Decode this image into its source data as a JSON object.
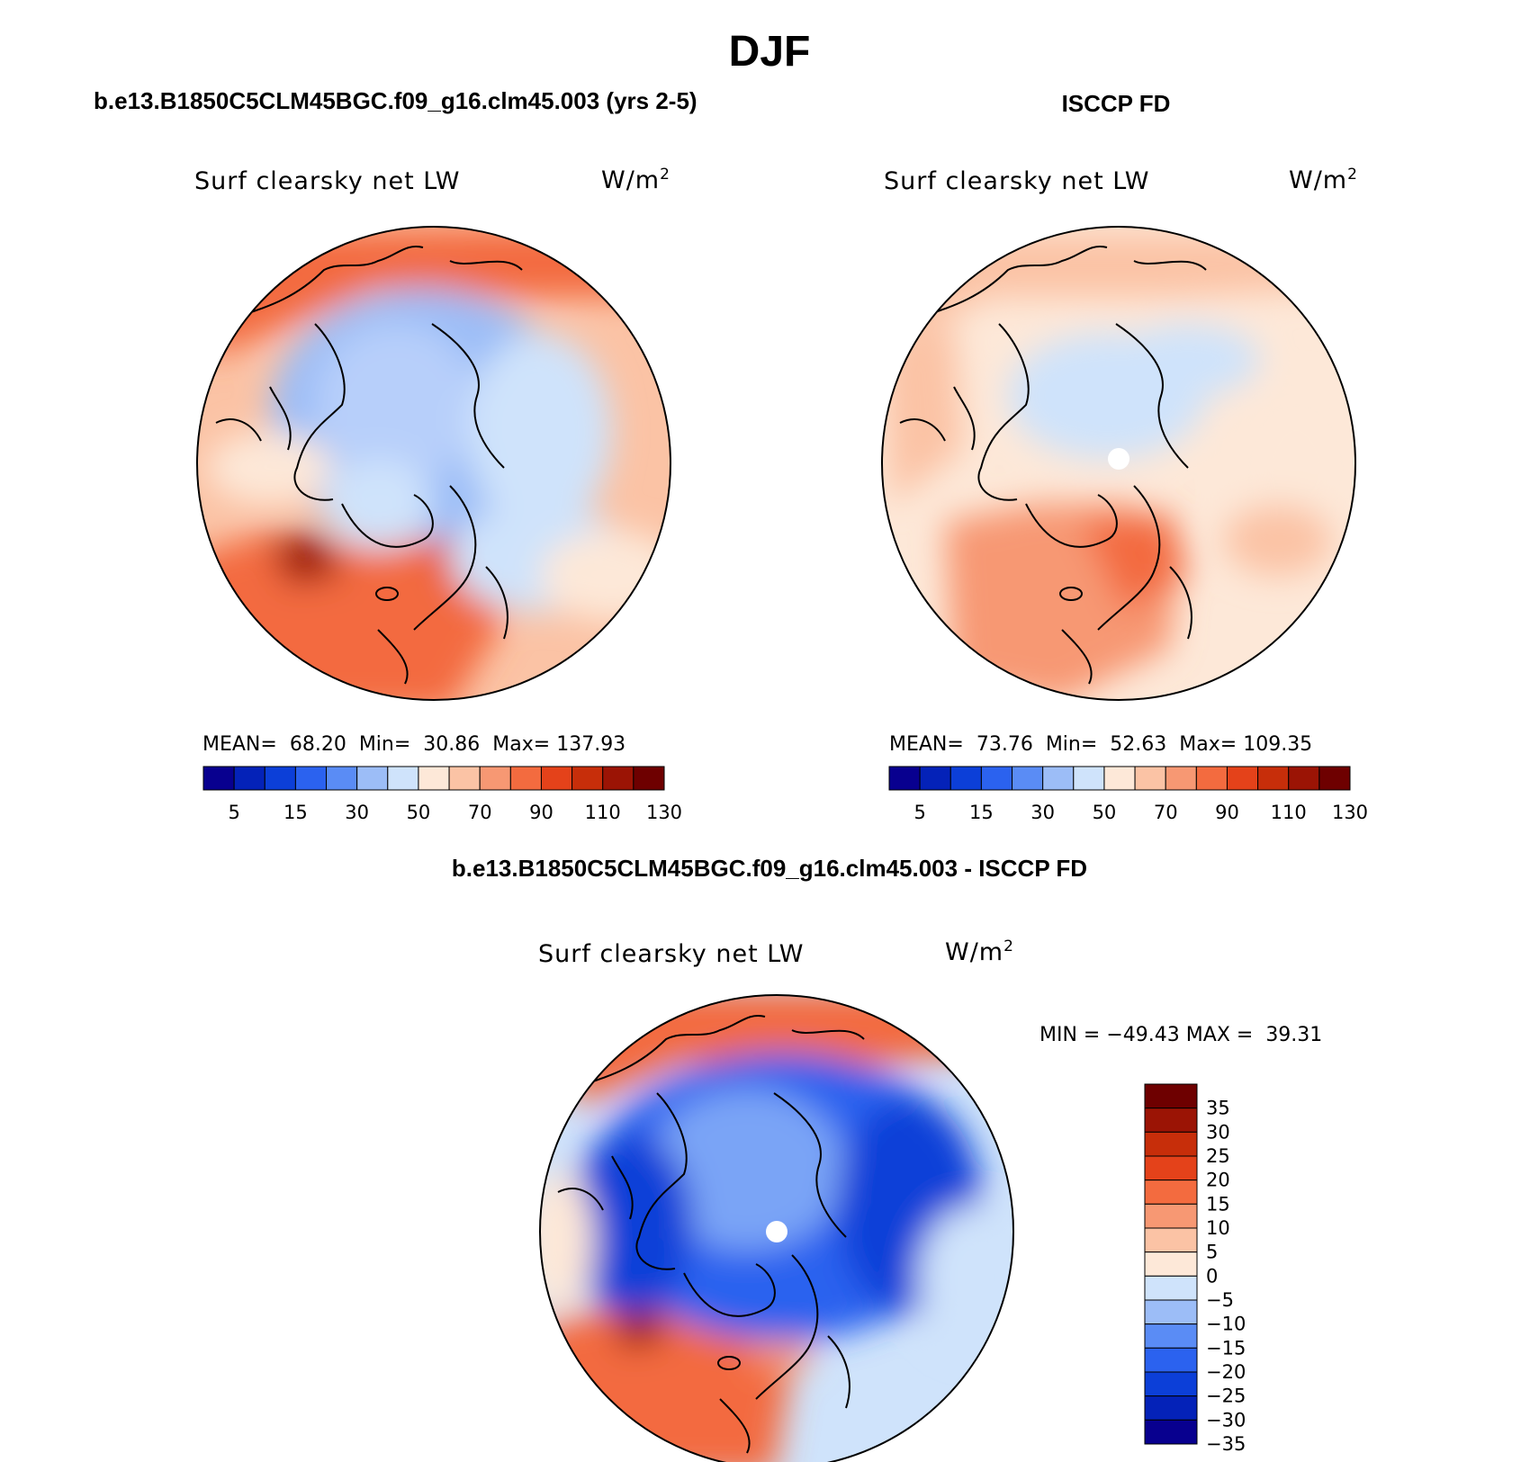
{
  "title": "DJF",
  "colors": {
    "scale": [
      "#08008f",
      "#0422b8",
      "#0c3fd8",
      "#2b62ef",
      "#5a8cf5",
      "#9cbdf7",
      "#cfe3fb",
      "#fde8d8",
      "#fbc3a5",
      "#f79873",
      "#f36b3f",
      "#e4421a",
      "#c72e0a",
      "#9b1405",
      "#6e0000"
    ],
    "coastline": "#000000"
  },
  "panels": [
    {
      "id": "model",
      "caption": "b.e13.B1850C5CLM45BGC.f09_g16.clm45.003 (yrs 2-5)",
      "variable": "Surf clearsky net LW",
      "units_base": "W/m",
      "units_exp": "2",
      "stats": {
        "mean_label": "MEAN=",
        "mean": "68.20",
        "min_label": "Min=",
        "min": "30.86",
        "max_label": "Max=",
        "max": "137.93"
      },
      "colorbar_labels": [
        "5",
        "15",
        "30",
        "50",
        "70",
        "90",
        "110",
        "130"
      ]
    },
    {
      "id": "obs",
      "caption": "ISCCP FD",
      "variable": "Surf clearsky net LW",
      "units_base": "W/m",
      "units_exp": "2",
      "stats": {
        "mean_label": "MEAN=",
        "mean": "73.76",
        "min_label": "Min=",
        "min": "52.63",
        "max_label": "Max=",
        "max": "109.35"
      },
      "colorbar_labels": [
        "5",
        "15",
        "30",
        "50",
        "70",
        "90",
        "110",
        "130"
      ]
    },
    {
      "id": "diff",
      "caption": "b.e13.B1850C5CLM45BGC.f09_g16.clm45.003 - ISCCP FD",
      "variable": "Surf clearsky net LW",
      "units_base": "W/m",
      "units_exp": "2",
      "stats": {
        "min_label": "MIN =",
        "min": "−49.43",
        "max_label": "MAX =",
        "max": "39.31"
      },
      "colorbar_labels": [
        "35",
        "30",
        "25",
        "20",
        "15",
        "10",
        "5",
        "0",
        "−5",
        "−10",
        "−15",
        "−20",
        "−25",
        "−30",
        "−35"
      ]
    }
  ]
}
